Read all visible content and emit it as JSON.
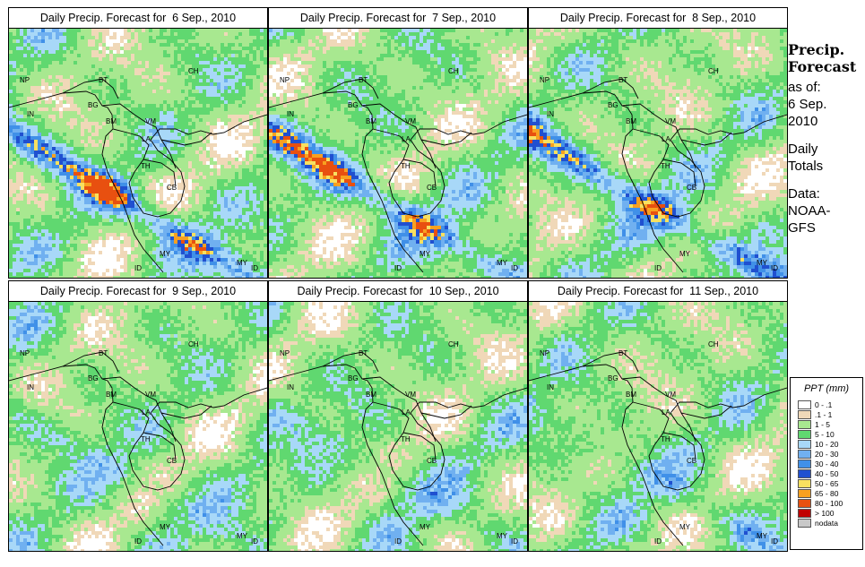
{
  "panels": [
    {
      "title": "Daily Precip. Forecast for  6 Sep., 2010"
    },
    {
      "title": "Daily Precip. Forecast for  7 Sep., 2010"
    },
    {
      "title": "Daily Precip. Forecast for  8 Sep., 2010"
    },
    {
      "title": "Daily Precip. Forecast for  9 Sep., 2010"
    },
    {
      "title": "Daily Precip. Forecast for  10 Sep., 2010"
    },
    {
      "title": "Daily Precip. Forecast for  11 Sep., 2010"
    }
  ],
  "map_labels": [
    "NP",
    "BT",
    "BG",
    "IN",
    "BM",
    "CH",
    "VM",
    "LA",
    "TH",
    "CB",
    "MY",
    "ID",
    "MY",
    "ID"
  ],
  "sidebar": {
    "heading_line1": "Precip.",
    "heading_line2": "Forecast",
    "asof_line1": "as of:",
    "asof_line2": "6 Sep.",
    "asof_line3": "2010",
    "totals_line1": "Daily",
    "totals_line2": "Totals",
    "data_line1": "Data:",
    "data_line2": "NOAA-",
    "data_line3": "GFS"
  },
  "legend": {
    "title": "PPT (mm)",
    "items": [
      {
        "label": "0 - .1",
        "color": "#ffffff"
      },
      {
        "label": ".1 - 1",
        "color": "#f0d8b8"
      },
      {
        "label": "1 - 5",
        "color": "#a8e890"
      },
      {
        "label": "5 - 10",
        "color": "#60d870"
      },
      {
        "label": "10 - 20",
        "color": "#a8d8f8"
      },
      {
        "label": "20 - 30",
        "color": "#70b0f0"
      },
      {
        "label": "30 - 40",
        "color": "#4090e8"
      },
      {
        "label": "40 - 50",
        "color": "#2050d0"
      },
      {
        "label": "50 - 65",
        "color": "#f8e060"
      },
      {
        "label": "65 - 80",
        "color": "#f8a020"
      },
      {
        "label": "80 - 100",
        "color": "#e85010"
      },
      {
        "label": "> 100",
        "color": "#c00000"
      },
      {
        "label": "nodata",
        "color": "#c8c8c8"
      }
    ]
  }
}
